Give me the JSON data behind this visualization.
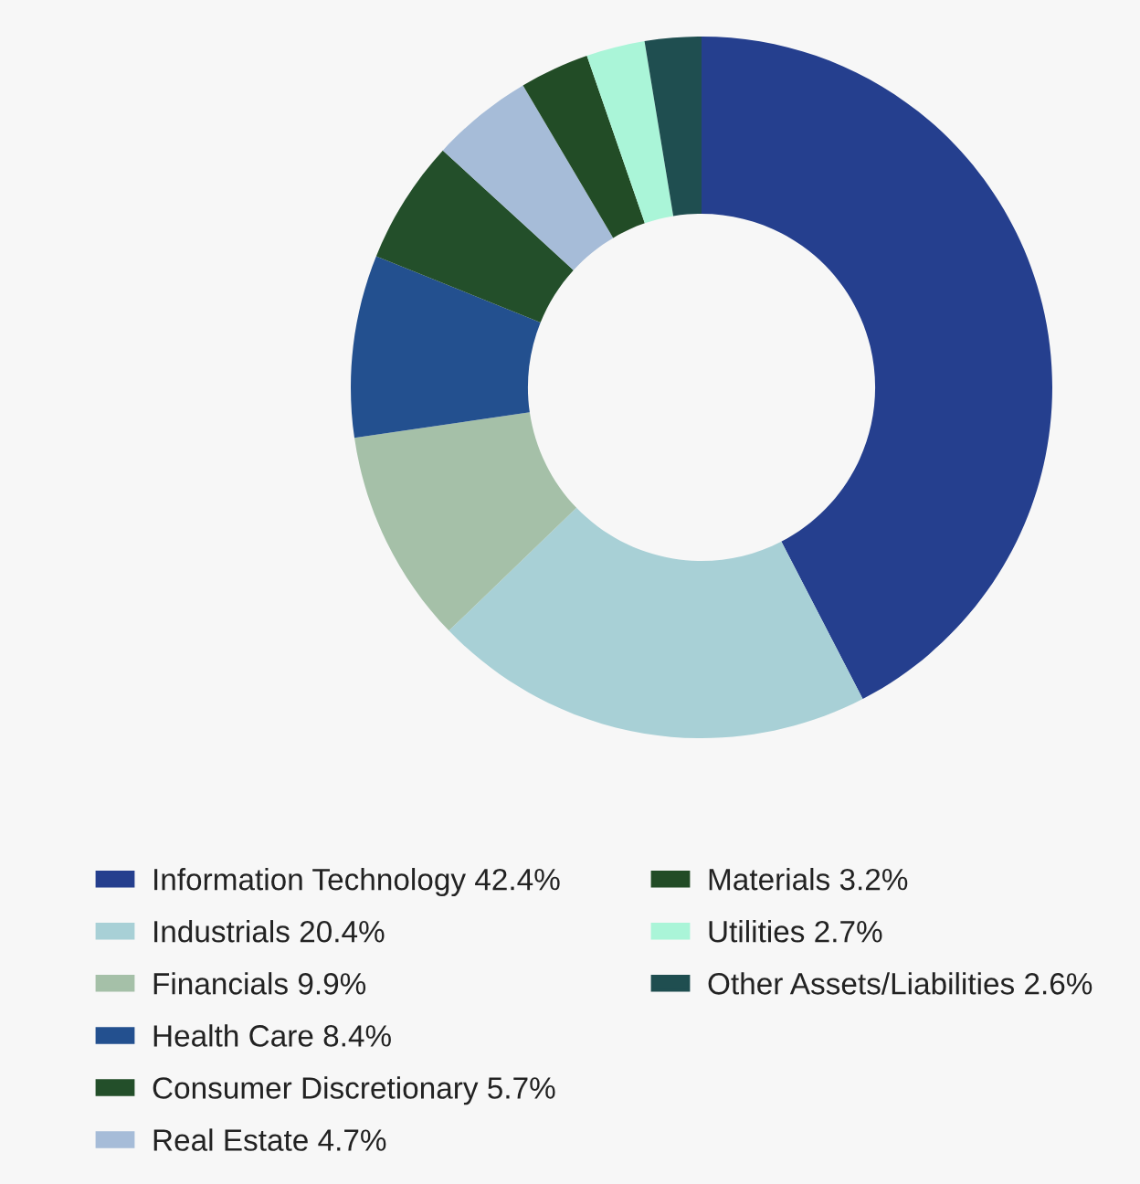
{
  "chart_data": {
    "type": "donut",
    "categories": [
      "Information Technology",
      "Industrials",
      "Financials",
      "Health Care",
      "Consumer Discretionary",
      "Real Estate",
      "Materials",
      "Utilities",
      "Other Assets/Liabilities"
    ],
    "values": [
      42.4,
      20.4,
      9.9,
      8.4,
      5.7,
      4.7,
      3.2,
      2.7,
      2.6
    ],
    "value_labels": [
      "42.4%",
      "20.4%",
      "9.9%",
      "8.4%",
      "5.7%",
      "4.7%",
      "3.2%",
      "2.7%",
      "2.6%"
    ],
    "colors": [
      "#253f8e",
      "#a8d0d6",
      "#a5c0a8",
      "#23508f",
      "#234f2a",
      "#a6bcd8",
      "#224c26",
      "#aaf5d8",
      "#1f4e50"
    ],
    "legend": "bottom"
  }
}
